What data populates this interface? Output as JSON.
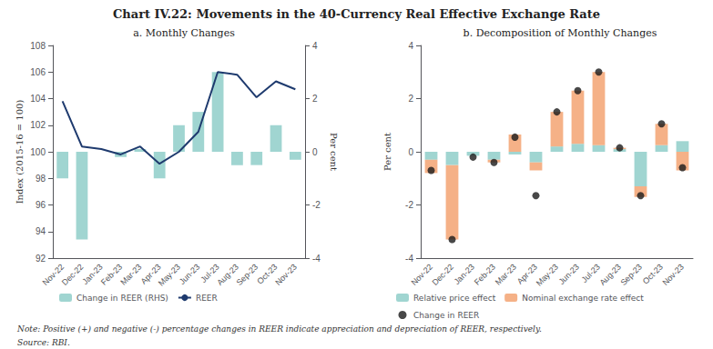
{
  "title": "Chart IV.22: Movements in the 40-Currency Real Effective Exchange Rate",
  "annotations": [
    "Note: Positive (+) and negative (-) percentage changes in REER indicate appreciation and depreciation of REER, respectively.",
    "Source: RBI."
  ],
  "chart_data": [
    {
      "type": "bar",
      "title": "a. Monthly Changes",
      "categories": [
        "Nov-22",
        "Dec-22",
        "Jan-23",
        "Feb-23",
        "Mar-23",
        "Apr-23",
        "May-23",
        "Jun-23",
        "Jul-23",
        "Aug-23",
        "Sep-23",
        "Oct-23",
        "Nov-23"
      ],
      "series": [
        {
          "name": "Change in REER (RHS)",
          "type": "bar",
          "color": "#96d0cc",
          "axis": "y2",
          "values": [
            -1.0,
            -3.3,
            0.0,
            -0.2,
            0.1,
            -1.0,
            1.0,
            1.5,
            3.0,
            -0.5,
            -0.5,
            1.0,
            -0.3
          ]
        },
        {
          "name": "REER",
          "type": "line",
          "color": "#1e3a6e",
          "values": [
            103.8,
            100.4,
            100.2,
            99.8,
            100.4,
            99.1,
            100.0,
            101.5,
            106.0,
            105.8,
            104.1,
            105.3,
            104.7
          ]
        }
      ],
      "ylabel": "Index (2015-16 = 100)",
      "y2label": "Per cent",
      "ylim": [
        92,
        108
      ],
      "yticks": [
        92,
        94,
        96,
        98,
        100,
        102,
        104,
        106,
        108
      ],
      "y2lim": [
        -4,
        4
      ],
      "y2ticks": [
        -4,
        -2,
        0,
        2,
        4
      ],
      "grid": false,
      "legend": "bottom"
    },
    {
      "type": "bar",
      "title": "b. Decomposition of Monthly Changes",
      "stacked": true,
      "categories": [
        "Nov-22",
        "Dec-22",
        "Jan-23",
        "Feb-23",
        "Mar-23",
        "Apr-23",
        "May-23",
        "Jun-23",
        "Jul-23",
        "Aug-23",
        "Sep-23",
        "Oct-23",
        "Nov-23"
      ],
      "series": [
        {
          "name": "Relative price effect",
          "type": "bar",
          "color": "#96d0cc",
          "values": [
            -0.3,
            -0.5,
            -0.15,
            -0.3,
            -0.1,
            -0.4,
            0.2,
            0.3,
            0.25,
            0.1,
            -1.3,
            0.25,
            0.4
          ]
        },
        {
          "name": "Nominal exchange rate effect",
          "type": "bar",
          "color": "#f4a97a",
          "values": [
            -0.5,
            -2.8,
            0.0,
            -0.1,
            0.65,
            -0.3,
            1.3,
            2.0,
            2.75,
            0.05,
            -0.4,
            0.8,
            -0.7
          ]
        },
        {
          "name": "Change in REER",
          "type": "scatter",
          "color": "#1a1a1a",
          "marker": "circle",
          "values": [
            -0.7,
            -3.3,
            -0.2,
            -0.4,
            0.55,
            -1.65,
            1.5,
            2.3,
            3.0,
            0.15,
            -1.65,
            1.05,
            -0.6
          ]
        }
      ],
      "ylabel": "Per cent",
      "ylim": [
        -4,
        4
      ],
      "yticks": [
        -4,
        -2,
        0,
        2,
        4
      ],
      "grid": false,
      "legend": "bottom"
    }
  ]
}
